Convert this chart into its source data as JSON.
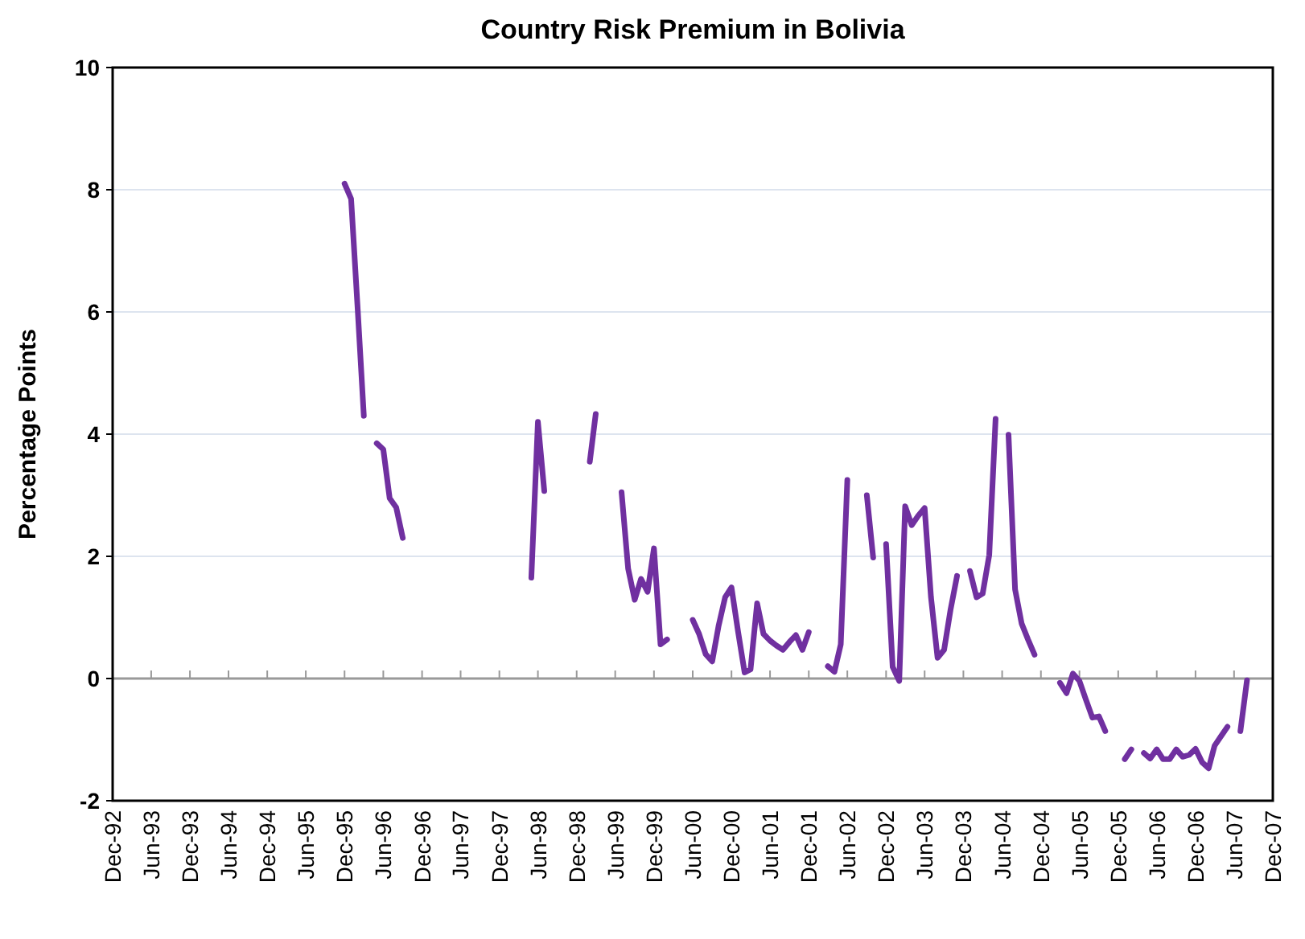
{
  "chart_data": {
    "type": "line",
    "title": "Country Risk Premium in Bolivia",
    "ylabel": "Percentage Points",
    "x": [
      "1995-12",
      "1996-01",
      "1996-02",
      "1996-03",
      "1996-04",
      "1996-05",
      "1996-06",
      "1996-07",
      "1996-08",
      "1996-09",
      "1996-10",
      "1998-05",
      "1998-06",
      "1998-07",
      "1998-08",
      "1999-02",
      "1999-03",
      "1999-04",
      "1999-07",
      "1999-08",
      "1999-09",
      "1999-10",
      "1999-11",
      "1999-12",
      "2000-01",
      "2000-02",
      "2000-03",
      "2000-06",
      "2000-07",
      "2000-08",
      "2000-09",
      "2000-10",
      "2000-11",
      "2000-12",
      "2001-01",
      "2001-02",
      "2001-03",
      "2001-04",
      "2001-05",
      "2001-06",
      "2001-07",
      "2001-08",
      "2001-09",
      "2001-10",
      "2001-11",
      "2001-12",
      "2002-01",
      "2002-03",
      "2002-04",
      "2002-05",
      "2002-06",
      "2002-07",
      "2002-09",
      "2002-10",
      "2002-11",
      "2002-12",
      "2003-01",
      "2003-02",
      "2003-03",
      "2003-04",
      "2003-05",
      "2003-06",
      "2003-07",
      "2003-08",
      "2003-09",
      "2003-10",
      "2003-11",
      "2003-12",
      "2004-01",
      "2004-02",
      "2004-03",
      "2004-04",
      "2004-05",
      "2004-06",
      "2004-07",
      "2004-08",
      "2004-09",
      "2004-10",
      "2004-11",
      "2004-12",
      "2005-03",
      "2005-04",
      "2005-05",
      "2005-06",
      "2005-07",
      "2005-08",
      "2005-09",
      "2005-10",
      "2005-11",
      "2006-01",
      "2006-02",
      "2006-03",
      "2006-04",
      "2006-05",
      "2006-06",
      "2006-07",
      "2006-08",
      "2006-09",
      "2006-10",
      "2006-11",
      "2006-12",
      "2007-01",
      "2007-02",
      "2007-03",
      "2007-04",
      "2007-05",
      "2007-06",
      "2007-07",
      "2007-08"
    ],
    "series": [
      {
        "color": "#7030a0",
        "values": [
          8.1,
          7.85,
          6.05,
          4.3,
          null,
          3.85,
          3.75,
          2.95,
          2.8,
          2.3,
          null,
          1.65,
          4.2,
          3.07,
          null,
          3.55,
          4.33,
          null,
          3.05,
          1.8,
          1.29,
          1.63,
          1.42,
          2.13,
          0.56,
          0.64,
          null,
          0.96,
          0.73,
          0.4,
          0.28,
          0.86,
          1.33,
          1.49,
          0.77,
          0.1,
          0.15,
          1.23,
          0.73,
          0.62,
          0.54,
          0.47,
          0.6,
          0.71,
          0.47,
          0.76,
          null,
          0.2,
          0.11,
          0.56,
          3.25,
          null,
          3.0,
          1.98,
          null,
          2.2,
          0.19,
          -0.04,
          2.82,
          2.51,
          2.66,
          2.79,
          1.33,
          0.34,
          0.47,
          1.12,
          1.68,
          null,
          1.76,
          1.33,
          1.39,
          2.02,
          4.25,
          null,
          3.99,
          1.46,
          0.9,
          0.64,
          0.39,
          null,
          -0.07,
          -0.24,
          0.08,
          -0.04,
          -0.34,
          -0.64,
          -0.62,
          -0.86,
          null,
          -1.32,
          -1.16,
          null,
          -1.22,
          -1.31,
          -1.16,
          -1.32,
          -1.32,
          -1.16,
          -1.28,
          -1.25,
          -1.15,
          -1.37,
          -1.47,
          -1.1,
          -0.94,
          -0.79,
          null,
          -0.86,
          -0.03
        ]
      }
    ],
    "xlim": [
      "1992-12",
      "2007-12"
    ],
    "xticks": [
      {
        "value": "1992-12",
        "label": "Dec-92"
      },
      {
        "value": "1993-06",
        "label": "Jun-93"
      },
      {
        "value": "1993-12",
        "label": "Dec-93"
      },
      {
        "value": "1994-06",
        "label": "Jun-94"
      },
      {
        "value": "1994-12",
        "label": "Dec-94"
      },
      {
        "value": "1995-06",
        "label": "Jun-95"
      },
      {
        "value": "1995-12",
        "label": "Dec-95"
      },
      {
        "value": "1996-06",
        "label": "Jun-96"
      },
      {
        "value": "1996-12",
        "label": "Dec-96"
      },
      {
        "value": "1997-06",
        "label": "Jun-97"
      },
      {
        "value": "1997-12",
        "label": "Dec-97"
      },
      {
        "value": "1998-06",
        "label": "Jun-98"
      },
      {
        "value": "1998-12",
        "label": "Dec-98"
      },
      {
        "value": "1999-06",
        "label": "Jun-99"
      },
      {
        "value": "1999-12",
        "label": "Dec-99"
      },
      {
        "value": "2000-06",
        "label": "Jun-00"
      },
      {
        "value": "2000-12",
        "label": "Dec-00"
      },
      {
        "value": "2001-06",
        "label": "Jun-01"
      },
      {
        "value": "2001-12",
        "label": "Dec-01"
      },
      {
        "value": "2002-06",
        "label": "Jun-02"
      },
      {
        "value": "2002-12",
        "label": "Dec-02"
      },
      {
        "value": "2003-06",
        "label": "Jun-03"
      },
      {
        "value": "2003-12",
        "label": "Dec-03"
      },
      {
        "value": "2004-06",
        "label": "Jun-04"
      },
      {
        "value": "2004-12",
        "label": "Dec-04"
      },
      {
        "value": "2005-06",
        "label": "Jun-05"
      },
      {
        "value": "2005-12",
        "label": "Dec-05"
      },
      {
        "value": "2006-06",
        "label": "Jun-06"
      },
      {
        "value": "2006-12",
        "label": "Dec-06"
      },
      {
        "value": "2007-06",
        "label": "Jun-07"
      },
      {
        "value": "2007-12",
        "label": "Dec-07"
      }
    ],
    "ylim": [
      -2,
      10
    ],
    "yticks": [
      -2,
      0,
      2,
      4,
      6,
      8,
      10
    ],
    "grid": "y",
    "marker": "none",
    "line_style": "solid"
  }
}
